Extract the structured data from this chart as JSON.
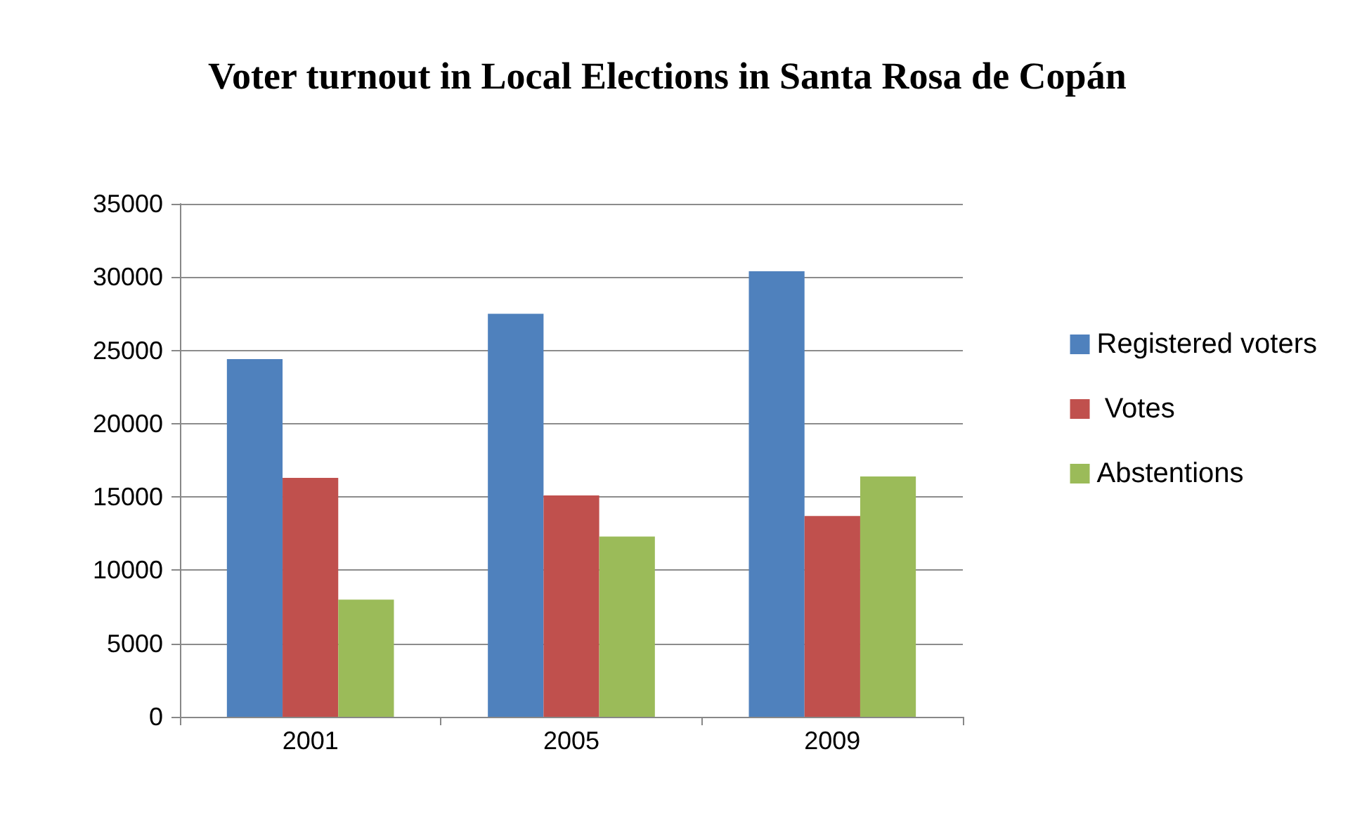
{
  "chart_data": {
    "type": "bar",
    "title": "Voter turnout in Local Elections in Santa Rosa de Copán",
    "categories": [
      "2001",
      "2005",
      "2009"
    ],
    "series": [
      {
        "name": "Registered voters",
        "color": "#4f81bd",
        "values": [
          24400,
          27500,
          30400
        ]
      },
      {
        "name": " Votes",
        "color": "#c0504d",
        "values": [
          16300,
          15100,
          13700
        ]
      },
      {
        "name": "Abstentions",
        "color": "#9bbb59",
        "values": [
          8000,
          12300,
          16400
        ]
      }
    ],
    "ylim": [
      0,
      35000
    ],
    "yticks": [
      0,
      5000,
      10000,
      15000,
      20000,
      25000,
      30000,
      35000
    ],
    "grid": "y",
    "legend": "right"
  }
}
